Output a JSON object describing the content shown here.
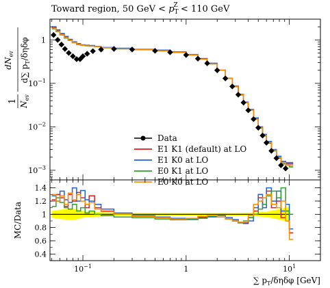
{
  "chart_data": [
    {
      "type": "line",
      "title": "Toward region, 50 GeV < p_T^Z < 110 GeV",
      "title_parts": {
        "prefix": "Toward region, 50 GeV < ",
        "var": "p",
        "sub": "T",
        "sup": "Z",
        "suffix": " < 110 GeV"
      },
      "ylabel_parts": {
        "one": "1",
        "nev": "N",
        "nev_sub": "ev",
        "num": "dN",
        "num_sub": "ev",
        "den": "d∑ p",
        "den_sub": "T",
        "den_tail": "/δηδφ"
      },
      "xscale": "log",
      "yscale": "log",
      "xlim": [
        0.048,
        20
      ],
      "ylim": [
        0.0006,
        3
      ],
      "yticks": [
        {
          "v": 0.001,
          "base": "10",
          "exp": "−3"
        },
        {
          "v": 0.01,
          "base": "10",
          "exp": "−2"
        },
        {
          "v": 0.1,
          "base": "10",
          "exp": "−1"
        },
        {
          "v": 1,
          "label": "1"
        }
      ],
      "legend_position": "center-right",
      "series": [
        {
          "name": "Data",
          "style": "points",
          "color": "#000000",
          "x": [
            0.052,
            0.057,
            0.062,
            0.067,
            0.073,
            0.08,
            0.087,
            0.094,
            0.1,
            0.11,
            0.125,
            0.15,
            0.2,
            0.3,
            0.5,
            0.7,
            1.0,
            1.3,
            1.6,
            2.0,
            2.4,
            2.8,
            3.2,
            3.6,
            4.0,
            4.5,
            5.0,
            5.5,
            6.0,
            6.7,
            7.5,
            8.3,
            9.2
          ],
          "y": [
            1.3,
            1.0,
            0.78,
            0.62,
            0.5,
            0.42,
            0.36,
            0.36,
            0.42,
            0.48,
            0.55,
            0.6,
            0.62,
            0.6,
            0.56,
            0.52,
            0.45,
            0.37,
            0.29,
            0.2,
            0.13,
            0.085,
            0.055,
            0.036,
            0.024,
            0.015,
            0.0095,
            0.0063,
            0.0043,
            0.0028,
            0.0019,
            0.0013,
            0.0011
          ]
        },
        {
          "name": "E1 K1 (default) at LO",
          "style": "step",
          "color": "#e41a1c",
          "x": [
            0.05,
            0.055,
            0.06,
            0.066,
            0.072,
            0.079,
            0.087,
            0.095,
            0.105,
            0.115,
            0.13,
            0.15,
            0.2,
            0.3,
            0.5,
            0.7,
            1.0,
            1.3,
            1.6,
            2.0,
            2.4,
            2.8,
            3.2,
            3.6,
            4.0,
            4.5,
            5.0,
            5.5,
            6.0,
            6.7,
            7.5,
            8.3,
            9.2,
            10.0
          ],
          "y": [
            1.9,
            1.6,
            1.35,
            1.15,
            1.0,
            0.88,
            0.8,
            0.76,
            0.74,
            0.73,
            0.7,
            0.66,
            0.63,
            0.6,
            0.57,
            0.52,
            0.45,
            0.37,
            0.29,
            0.2,
            0.13,
            0.085,
            0.055,
            0.036,
            0.024,
            0.015,
            0.0095,
            0.0063,
            0.0043,
            0.0029,
            0.002,
            0.0015,
            0.0014,
            0.0014
          ]
        },
        {
          "name": "E1 K0 at LO",
          "style": "step",
          "color": "#1f5fe0",
          "x": [
            0.05,
            0.055,
            0.06,
            0.066,
            0.072,
            0.079,
            0.087,
            0.095,
            0.105,
            0.115,
            0.13,
            0.15,
            0.2,
            0.3,
            0.5,
            0.7,
            1.0,
            1.3,
            1.6,
            2.0,
            2.4,
            2.8,
            3.2,
            3.6,
            4.0,
            4.5,
            5.0,
            5.5,
            6.0,
            6.7,
            7.5,
            8.3,
            9.2,
            10.0
          ],
          "y": [
            2.0,
            1.7,
            1.4,
            1.2,
            1.03,
            0.9,
            0.82,
            0.77,
            0.75,
            0.74,
            0.71,
            0.67,
            0.64,
            0.61,
            0.58,
            0.53,
            0.46,
            0.37,
            0.29,
            0.2,
            0.13,
            0.087,
            0.056,
            0.037,
            0.025,
            0.016,
            0.01,
            0.0067,
            0.0046,
            0.003,
            0.0021,
            0.0016,
            0.0015,
            0.0015
          ]
        },
        {
          "name": "E0 K1 at LO",
          "style": "step",
          "color": "#2ca02c",
          "x": [
            0.05,
            0.055,
            0.06,
            0.066,
            0.072,
            0.079,
            0.087,
            0.095,
            0.105,
            0.115,
            0.13,
            0.15,
            0.2,
            0.3,
            0.5,
            0.7,
            1.0,
            1.3,
            1.6,
            2.0,
            2.4,
            2.8,
            3.2,
            3.6,
            4.0,
            4.5,
            5.0,
            5.5,
            6.0,
            6.7,
            7.5,
            8.3,
            9.2,
            10.0
          ],
          "y": [
            1.8,
            1.55,
            1.3,
            1.1,
            0.97,
            0.86,
            0.78,
            0.75,
            0.73,
            0.72,
            0.7,
            0.66,
            0.62,
            0.6,
            0.56,
            0.52,
            0.45,
            0.36,
            0.28,
            0.2,
            0.13,
            0.084,
            0.054,
            0.036,
            0.024,
            0.015,
            0.0094,
            0.0062,
            0.0042,
            0.0028,
            0.0019,
            0.0014,
            0.0013,
            0.0012
          ]
        },
        {
          "name": "E0 K0 at LO",
          "style": "step",
          "color": "#ff8c00",
          "x": [
            0.05,
            0.055,
            0.06,
            0.066,
            0.072,
            0.079,
            0.087,
            0.095,
            0.105,
            0.115,
            0.13,
            0.15,
            0.2,
            0.3,
            0.5,
            0.7,
            1.0,
            1.3,
            1.6,
            2.0,
            2.4,
            2.8,
            3.2,
            3.6,
            4.0,
            4.5,
            5.0,
            5.5,
            6.0,
            6.7,
            7.5,
            8.3,
            9.2,
            10.0
          ],
          "y": [
            1.85,
            1.58,
            1.32,
            1.12,
            0.98,
            0.87,
            0.79,
            0.75,
            0.73,
            0.72,
            0.7,
            0.66,
            0.62,
            0.6,
            0.56,
            0.52,
            0.45,
            0.36,
            0.28,
            0.2,
            0.13,
            0.085,
            0.055,
            0.036,
            0.024,
            0.015,
            0.0096,
            0.0064,
            0.0044,
            0.0029,
            0.002,
            0.0015,
            0.0013,
            0.0013
          ]
        }
      ]
    },
    {
      "type": "line",
      "ylabel": "MC/Data",
      "xlabel_parts": {
        "pre": "∑ p",
        "sub": "T",
        "post": "/δηδφ [GeV]"
      },
      "xscale": "log",
      "xlim": [
        0.048,
        20
      ],
      "ylim": [
        0.3,
        1.52
      ],
      "yticks": [
        0.4,
        0.6,
        0.8,
        1.0,
        1.2,
        1.4
      ],
      "xticks": [
        {
          "v": 0.1,
          "base": "10",
          "exp": "−1"
        },
        {
          "v": 1,
          "label": "1"
        },
        {
          "v": 10,
          "base": "10",
          "exp": "1"
        }
      ],
      "reference_line": 1.0,
      "band_color": "#ffff00",
      "data_band": {
        "x": [
          0.05,
          0.06,
          0.07,
          0.08,
          0.09,
          0.1,
          0.12,
          0.15,
          0.2,
          0.3,
          0.5,
          1.0,
          2.0,
          3.0,
          4.0,
          5.0,
          6.0,
          7.0,
          8.0,
          9.0,
          10.0
        ],
        "half_width": [
          0.05,
          0.07,
          0.08,
          0.09,
          0.07,
          0.05,
          0.04,
          0.03,
          0.025,
          0.02,
          0.02,
          0.02,
          0.02,
          0.02,
          0.025,
          0.03,
          0.04,
          0.06,
          0.08,
          0.1,
          0.12
        ]
      },
      "series": [
        {
          "name": "E1 K1 (default) at LO",
          "color": "#e41a1c",
          "x": [
            0.05,
            0.055,
            0.06,
            0.066,
            0.072,
            0.079,
            0.087,
            0.095,
            0.105,
            0.115,
            0.13,
            0.15,
            0.2,
            0.3,
            0.5,
            0.7,
            1.0,
            1.3,
            1.6,
            2.0,
            2.4,
            2.8,
            3.2,
            3.6,
            4.0,
            4.5,
            5.0,
            5.5,
            6.0,
            6.7,
            7.5,
            8.3,
            9.2,
            10.0
          ],
          "y": [
            1.22,
            1.3,
            1.25,
            1.12,
            1.3,
            1.2,
            1.33,
            1.25,
            1.1,
            1.28,
            1.1,
            1.05,
            1.0,
            0.97,
            0.95,
            0.92,
            0.93,
            0.95,
            0.97,
            0.96,
            0.93,
            0.9,
            0.87,
            0.86,
            0.95,
            1.05,
            1.25,
            1.15,
            1.35,
            1.1,
            1.2,
            0.95,
            1.05,
            0.72
          ]
        },
        {
          "name": "E1 K0 at LO",
          "color": "#1f5fe0",
          "x": [
            0.05,
            0.055,
            0.06,
            0.066,
            0.072,
            0.079,
            0.087,
            0.095,
            0.105,
            0.115,
            0.13,
            0.15,
            0.2,
            0.3,
            0.5,
            0.7,
            1.0,
            1.3,
            1.6,
            2.0,
            2.4,
            2.8,
            3.2,
            3.6,
            4.0,
            4.5,
            5.0,
            5.5,
            6.0,
            6.7,
            7.5,
            8.3,
            9.2,
            10.0
          ],
          "y": [
            1.28,
            1.2,
            1.35,
            1.22,
            1.18,
            1.4,
            1.2,
            1.36,
            1.22,
            1.2,
            1.15,
            1.08,
            1.02,
            0.98,
            0.96,
            0.94,
            0.93,
            0.96,
            0.97,
            0.98,
            0.95,
            0.92,
            0.88,
            0.87,
            0.9,
            1.1,
            1.3,
            1.1,
            1.4,
            1.2,
            1.35,
            1.05,
            1.15,
            0.78
          ]
        },
        {
          "name": "E0 K1 at LO",
          "color": "#2ca02c",
          "x": [
            0.05,
            0.055,
            0.06,
            0.066,
            0.072,
            0.079,
            0.087,
            0.095,
            0.105,
            0.115,
            0.13,
            0.15,
            0.2,
            0.3,
            0.5,
            0.7,
            1.0,
            1.3,
            1.6,
            2.0,
            2.4,
            2.8,
            3.2,
            3.6,
            4.0,
            4.5,
            5.0,
            5.5,
            6.0,
            6.7,
            7.5,
            8.3,
            9.2,
            10.0
          ],
          "y": [
            1.12,
            1.25,
            1.18,
            1.1,
            1.08,
            1.15,
            1.05,
            1.1,
            1.02,
            1.05,
            1.0,
            0.98,
            0.96,
            0.95,
            0.93,
            0.92,
            0.92,
            0.94,
            0.96,
            0.96,
            0.93,
            0.9,
            0.87,
            0.9,
            0.95,
            1.0,
            1.08,
            1.15,
            1.28,
            1.35,
            1.25,
            1.4,
            1.05,
            1.0
          ]
        },
        {
          "name": "E0 K0 at LO",
          "color": "#ff8c00",
          "x": [
            0.05,
            0.055,
            0.06,
            0.066,
            0.072,
            0.079,
            0.087,
            0.095,
            0.105,
            0.115,
            0.13,
            0.15,
            0.2,
            0.3,
            0.5,
            0.7,
            1.0,
            1.3,
            1.6,
            2.0,
            2.4,
            2.8,
            3.2,
            3.6,
            4.0,
            4.5,
            5.0,
            5.5,
            6.0,
            6.7,
            7.5,
            8.3,
            9.2,
            10.0
          ],
          "y": [
            1.3,
            1.2,
            1.28,
            1.15,
            1.32,
            1.22,
            1.3,
            1.2,
            1.15,
            1.18,
            1.08,
            1.04,
            1.0,
            0.97,
            0.95,
            0.93,
            0.94,
            0.97,
            0.98,
            0.96,
            0.93,
            0.9,
            0.88,
            0.89,
            0.98,
            1.15,
            1.2,
            1.25,
            1.3,
            1.15,
            1.1,
            1.2,
            0.9,
            0.62
          ]
        }
      ]
    }
  ]
}
